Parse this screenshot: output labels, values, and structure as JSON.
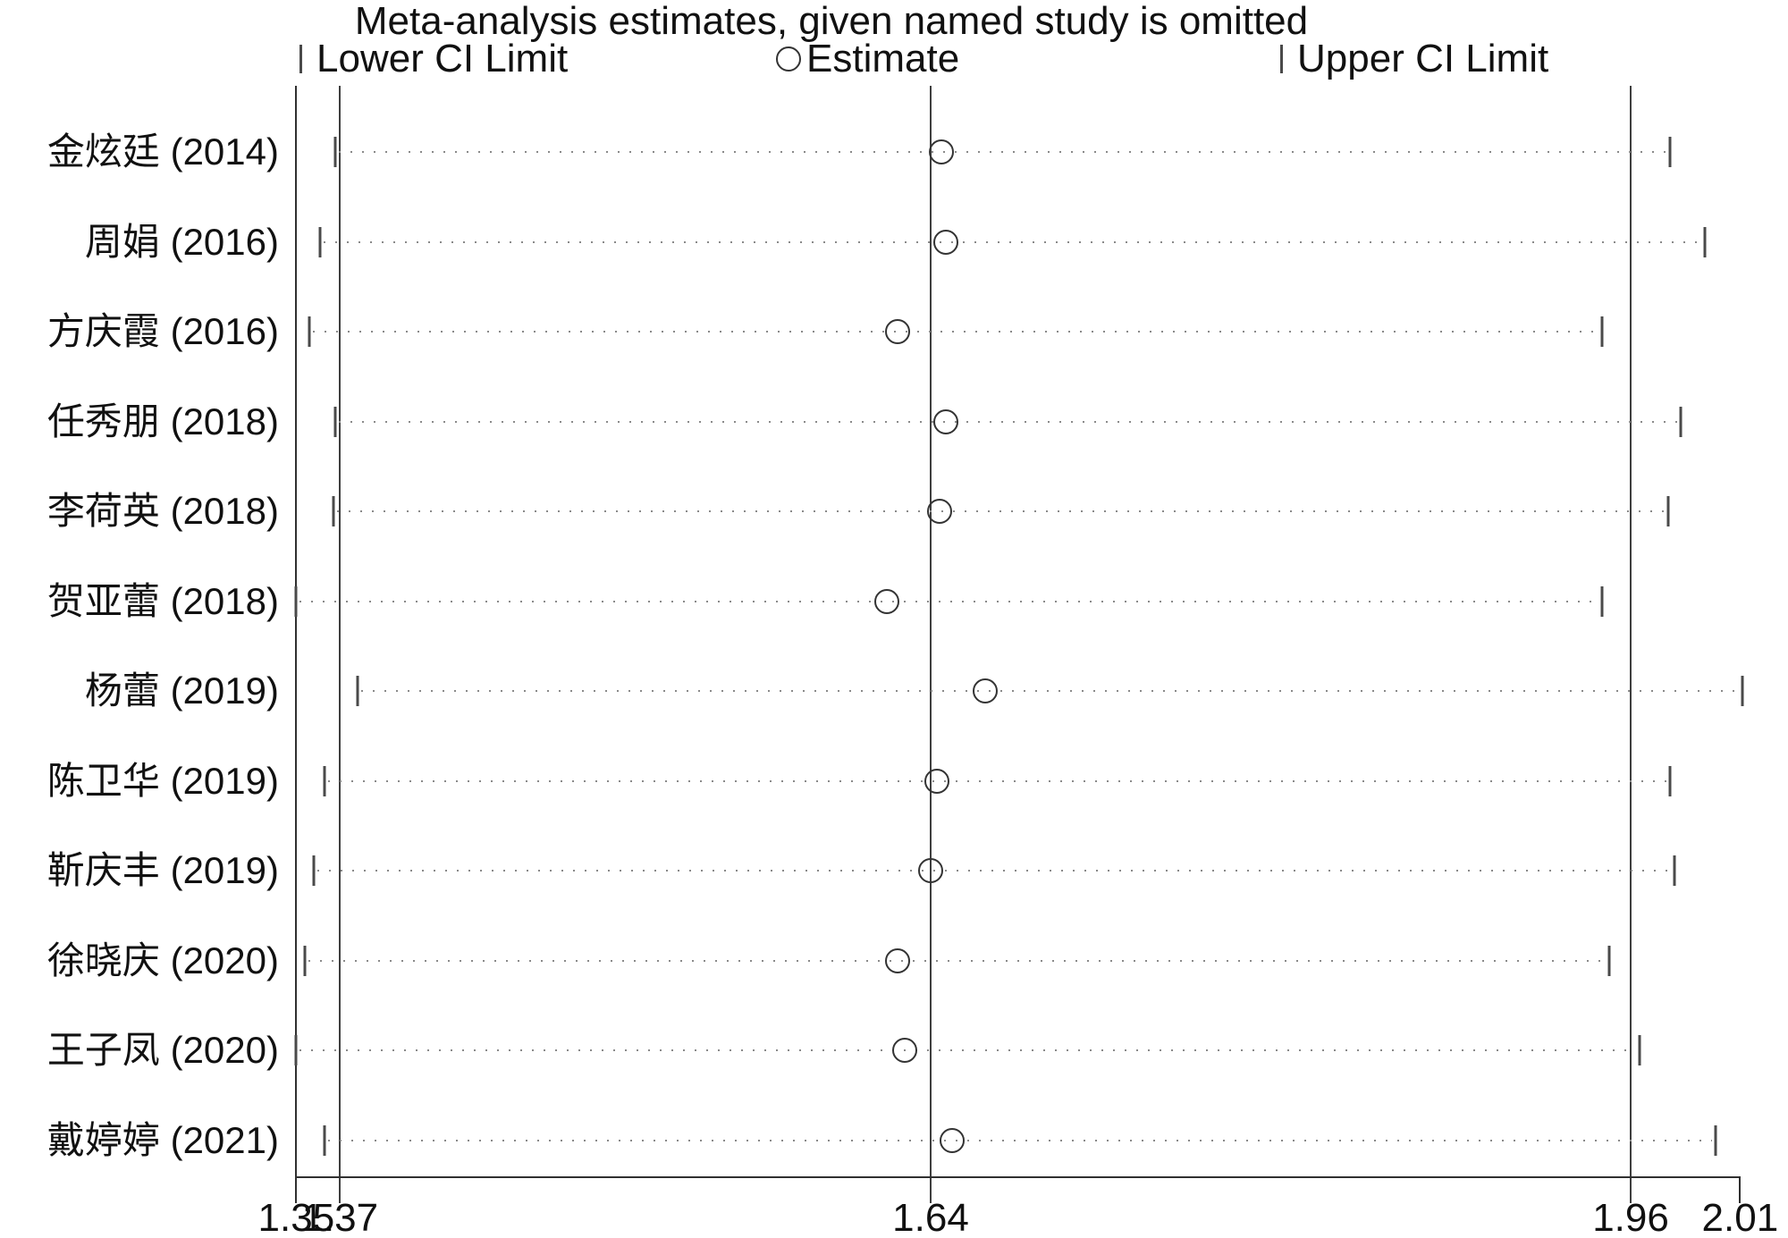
{
  "title": "Meta-analysis estimates, given named study is omitted",
  "legend": {
    "lower_label": "Lower CI Limit",
    "estimate_label": "Estimate",
    "upper_label": "Upper CI Limit"
  },
  "chart_data": {
    "type": "scatter",
    "subtype": "leave-one-out sensitivity forest plot",
    "title": "Meta-analysis estimates, given named study is omitted",
    "legend_entries": [
      "Lower CI Limit",
      "Estimate",
      "Upper CI Limit"
    ],
    "legend_position": "top",
    "grid": false,
    "x_axis": {
      "tick_labels": [
        "1.35",
        "1.37",
        "1.64",
        "1.96",
        "2.01"
      ],
      "tick_values": [
        1.35,
        1.37,
        1.64,
        1.96,
        2.01
      ],
      "range": [
        1.35,
        2.01
      ]
    },
    "reference_lines": {
      "overall_lower": 1.37,
      "overall_estimate": 1.64,
      "overall_upper": 1.96
    },
    "studies": [
      {
        "label": "金炫廷 (2014)",
        "lower": 1.368,
        "estimate": 1.645,
        "upper": 1.978
      },
      {
        "label": "周娟 (2016)",
        "lower": 1.361,
        "estimate": 1.647,
        "upper": 1.994
      },
      {
        "label": "方庆霞 (2016)",
        "lower": 1.356,
        "estimate": 1.625,
        "upper": 1.947
      },
      {
        "label": "任秀朋 (2018)",
        "lower": 1.368,
        "estimate": 1.647,
        "upper": 1.983
      },
      {
        "label": "李荷英 (2018)",
        "lower": 1.367,
        "estimate": 1.644,
        "upper": 1.977
      },
      {
        "label": "贺亚蕾 (2018)",
        "lower": 1.35,
        "estimate": 1.62,
        "upper": 1.947
      },
      {
        "label": "杨蕾 (2019)",
        "lower": 1.378,
        "estimate": 1.665,
        "upper": 2.011
      },
      {
        "label": "陈卫华 (2019)",
        "lower": 1.363,
        "estimate": 1.643,
        "upper": 1.978
      },
      {
        "label": "靳庆丰 (2019)",
        "lower": 1.358,
        "estimate": 1.64,
        "upper": 1.98
      },
      {
        "label": "徐晓庆 (2020)",
        "lower": 1.354,
        "estimate": 1.625,
        "upper": 1.95
      },
      {
        "label": "王子凤 (2020)",
        "lower": 1.35,
        "estimate": 1.628,
        "upper": 1.964
      },
      {
        "label": "戴婷婷 (2021)",
        "lower": 1.363,
        "estimate": 1.65,
        "upper": 1.999
      }
    ]
  },
  "colors": {
    "background": "#ffffff",
    "text": "#111111",
    "axis": "#303030",
    "reference_line": "#3f3f3f",
    "dotted_line": "#8a8a8a",
    "marker": "#4a4a4a",
    "circle_outline": "#333333"
  }
}
